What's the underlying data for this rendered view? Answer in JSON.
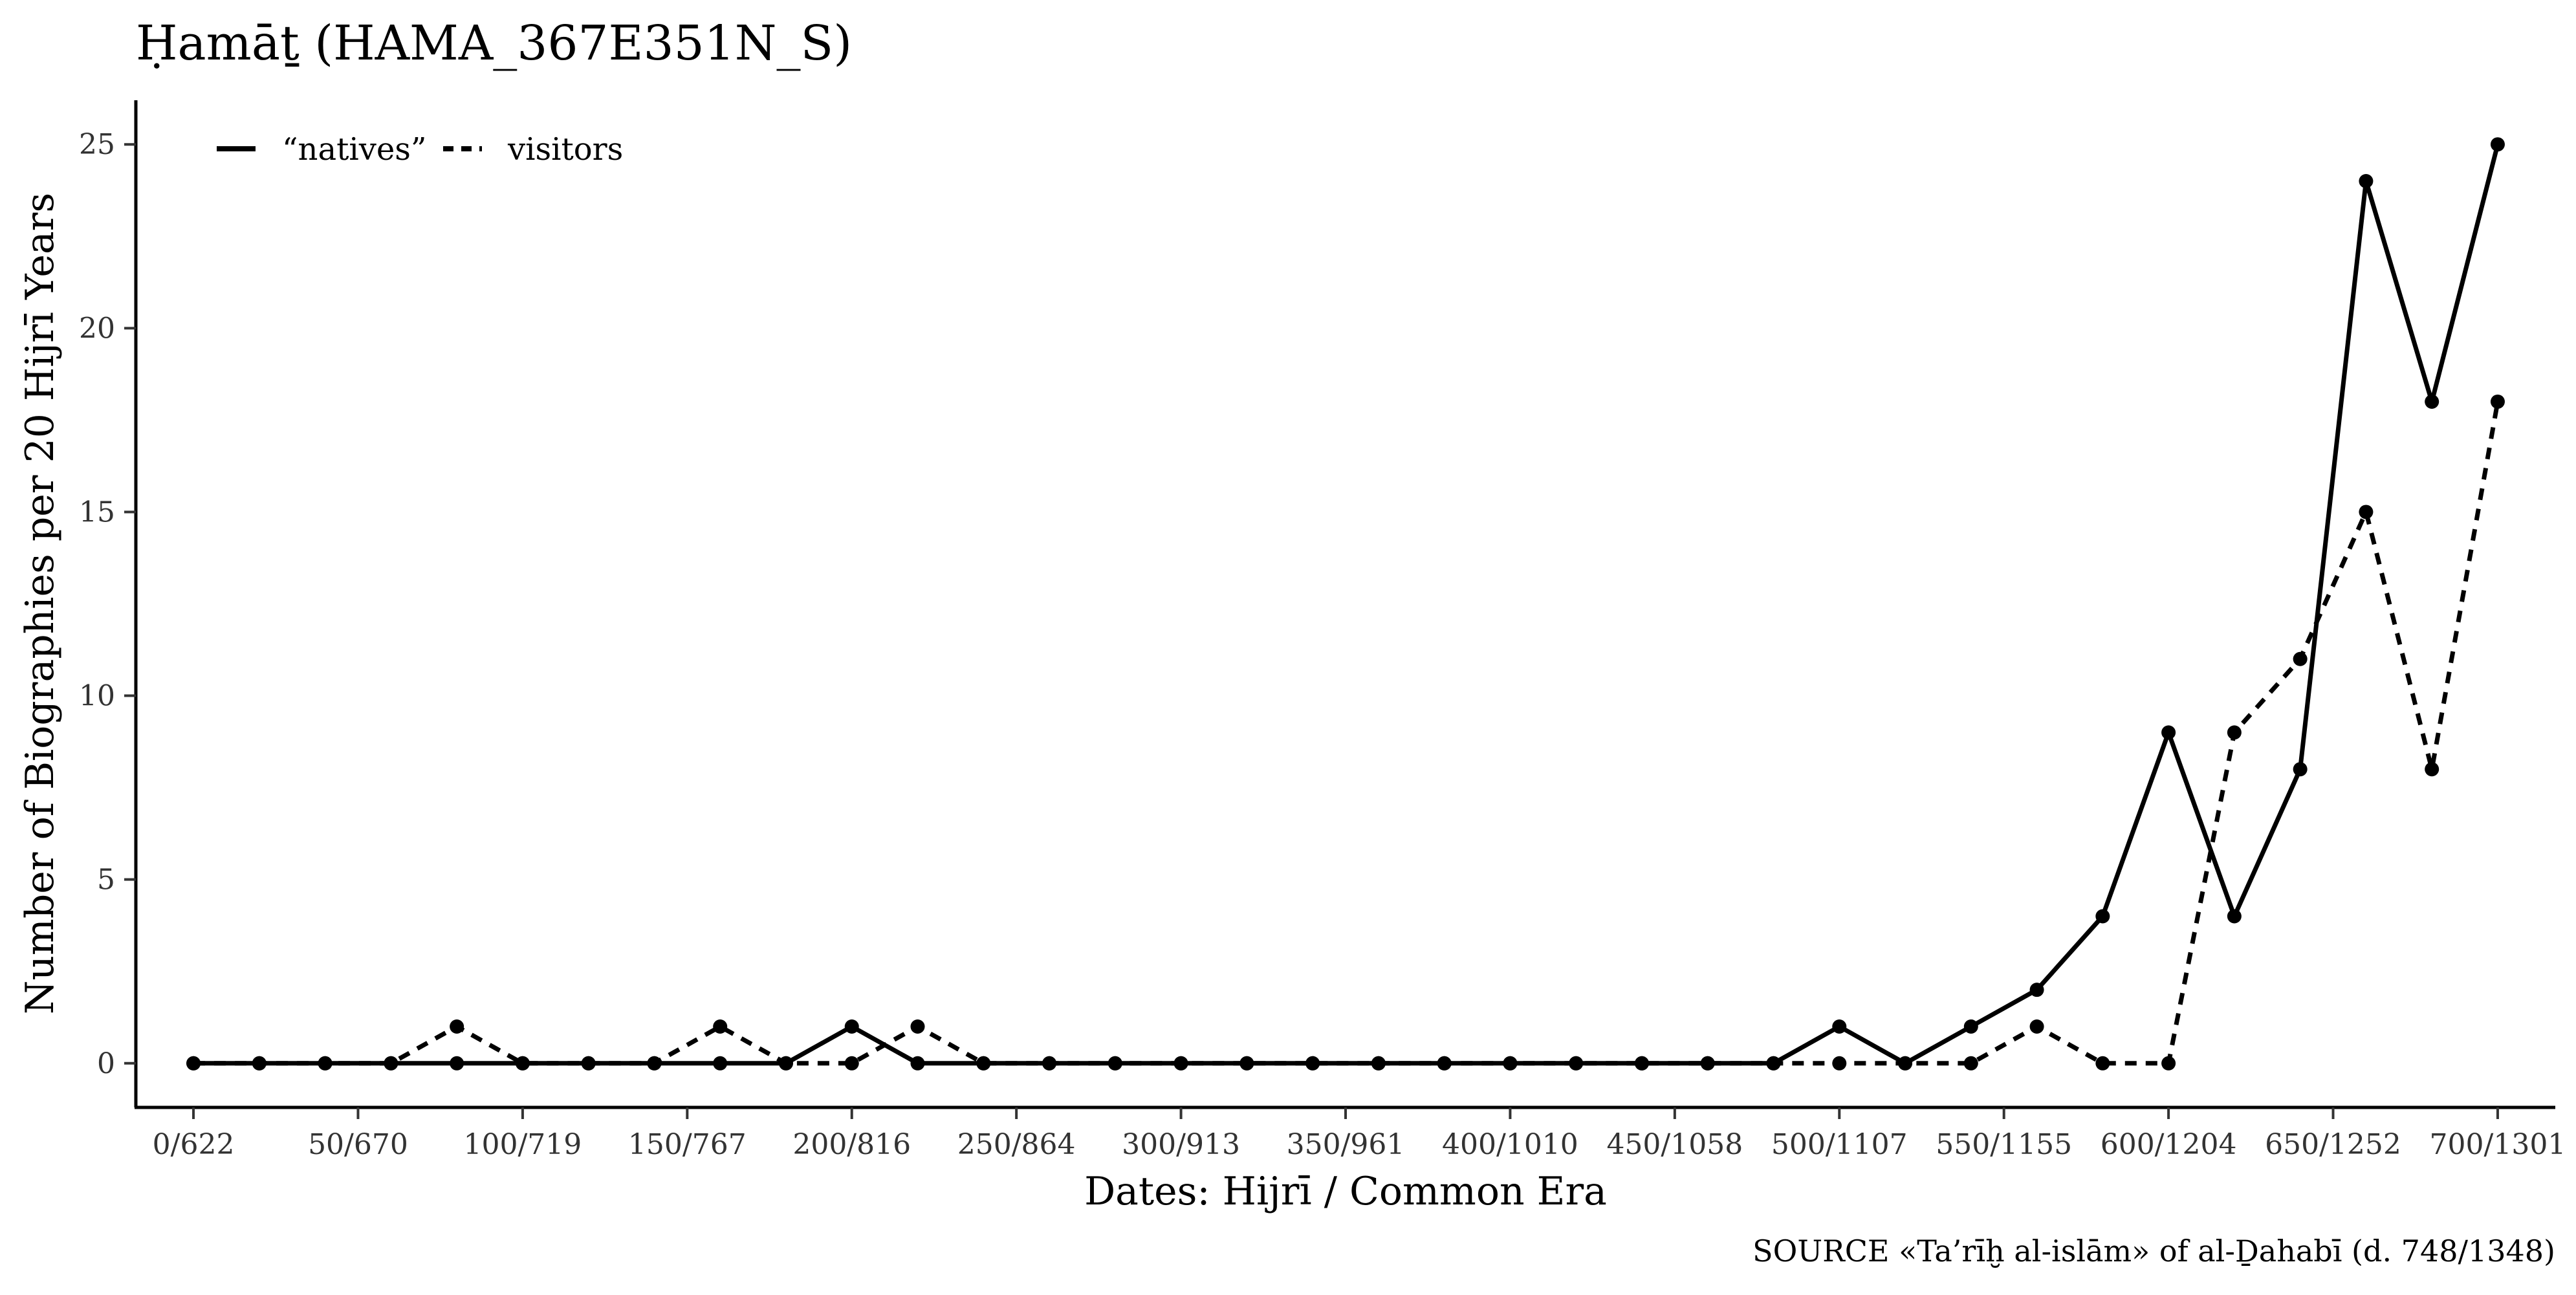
{
  "chart_data": {
    "type": "line",
    "title": "Ḥamāṯ (HAMA_367E351N_S)",
    "xlabel": "Dates: Hijrī / Common Era",
    "ylabel": "Number of Biographies per 20 Hijrī Years",
    "caption": "SOURCE «Ta’rīḫ al-islām» of al-Ḏahabī (d. 748/1348)",
    "xlim": [
      -17.5,
      717.5
    ],
    "ylim": [
      -1.2,
      26.2
    ],
    "x_ticks": [
      0,
      50,
      100,
      150,
      200,
      250,
      300,
      350,
      400,
      450,
      500,
      550,
      600,
      650,
      700
    ],
    "x_tick_labels": [
      "0/622",
      "50/670",
      "100/719",
      "150/767",
      "200/816",
      "250/864",
      "300/913",
      "350/961",
      "400/1010",
      "450/1058",
      "500/1107",
      "550/1155",
      "600/1204",
      "650/1252",
      "700/1301"
    ],
    "y_ticks": [
      0,
      5,
      10,
      15,
      20,
      25
    ],
    "y_tick_labels": [
      "0",
      "5",
      "10",
      "15",
      "20",
      "25"
    ],
    "grid": false,
    "legend_position": "top-left",
    "x": [
      0,
      20,
      40,
      60,
      80,
      100,
      120,
      140,
      160,
      180,
      200,
      220,
      240,
      260,
      280,
      300,
      320,
      340,
      360,
      380,
      400,
      420,
      440,
      460,
      480,
      500,
      520,
      540,
      560,
      580,
      600,
      620,
      640,
      660,
      680,
      700
    ],
    "series": [
      {
        "name": "“natives”",
        "line_style": "solid",
        "values": [
          0,
          0,
          0,
          0,
          0,
          0,
          0,
          0,
          0,
          0,
          1,
          0,
          0,
          0,
          0,
          0,
          0,
          0,
          0,
          0,
          0,
          0,
          0,
          0,
          0,
          1,
          0,
          1,
          2,
          4,
          9,
          4,
          8,
          24,
          18,
          25
        ]
      },
      {
        "name": "visitors",
        "line_style": "dashed",
        "values": [
          0,
          0,
          0,
          0,
          1,
          0,
          0,
          0,
          1,
          0,
          0,
          1,
          0,
          0,
          0,
          0,
          0,
          0,
          0,
          0,
          0,
          0,
          0,
          0,
          0,
          0,
          0,
          0,
          1,
          0,
          0,
          9,
          11,
          15,
          8,
          18
        ]
      }
    ],
    "colors": {
      "line": "#000000",
      "axis": "#000000",
      "text": "#111111"
    }
  }
}
